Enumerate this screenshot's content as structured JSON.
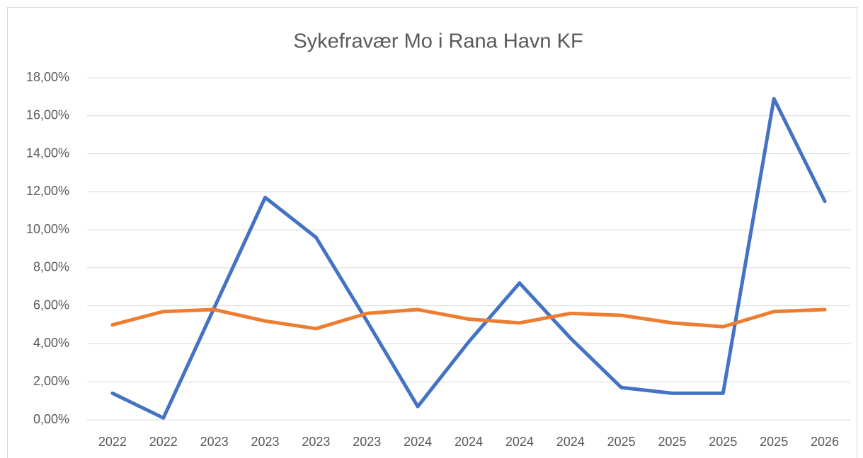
{
  "chart_data": {
    "type": "line",
    "title": "Sykefravær Mo i Rana Havn KF",
    "categories": [
      "2022",
      "2022",
      "2023",
      "2023",
      "2023",
      "2023",
      "2024",
      "2024",
      "2024",
      "2024",
      "2025",
      "2025",
      "2025",
      "2025",
      "2026"
    ],
    "series": [
      {
        "color": "#4472c4",
        "values": [
          1.4,
          0.1,
          5.9,
          11.7,
          9.6,
          5.2,
          0.7,
          4.1,
          7.2,
          4.3,
          1.7,
          1.4,
          1.4,
          16.9,
          11.5
        ]
      },
      {
        "color": "#ed7d31",
        "values": [
          5.0,
          5.7,
          5.8,
          5.2,
          4.8,
          5.6,
          5.8,
          5.3,
          5.1,
          5.6,
          5.5,
          5.1,
          4.9,
          5.7,
          5.8
        ]
      }
    ],
    "ylim": [
      0,
      18
    ],
    "yticks": [
      {
        "value": 0,
        "label": "0,00%"
      },
      {
        "value": 2,
        "label": "2,00%"
      },
      {
        "value": 4,
        "label": "4,00%"
      },
      {
        "value": 6,
        "label": "6,00%"
      },
      {
        "value": 8,
        "label": "8,00%"
      },
      {
        "value": 10,
        "label": "10,00%"
      },
      {
        "value": 12,
        "label": "12,00%"
      },
      {
        "value": 14,
        "label": "14,00%"
      },
      {
        "value": 16,
        "label": "16,00%"
      },
      {
        "value": 18,
        "label": "18,00%"
      }
    ],
    "grid": true
  }
}
